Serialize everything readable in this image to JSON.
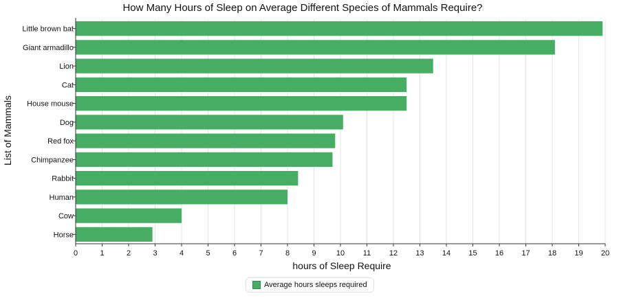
{
  "chart_data": {
    "type": "bar",
    "orientation": "horizontal",
    "title": "How Many Hours of Sleep on Average Different Species of Mammals Require?",
    "xlabel": "hours of Sleep Require",
    "ylabel": "List of Mammals",
    "xlim": [
      0,
      20
    ],
    "x_ticks": [
      0,
      1,
      2,
      3,
      4,
      5,
      6,
      7,
      8,
      9,
      10,
      11,
      12,
      13,
      14,
      15,
      16,
      17,
      18,
      19,
      20
    ],
    "grid": true,
    "legend_position": "bottom-center",
    "categories": [
      "Little brown bat",
      "Giant armadillo",
      "Lion",
      "Cat",
      "House mouse",
      "Dog",
      "Red fox",
      "Chimpanzee",
      "Rabbit",
      "Human",
      "Cow",
      "Horse"
    ],
    "series": [
      {
        "name": "Average hours sleeps required",
        "color": "#46ae63",
        "values": [
          19.9,
          18.1,
          13.5,
          12.5,
          12.5,
          10.1,
          9.8,
          9.7,
          8.4,
          8.0,
          4.0,
          2.9
        ]
      }
    ]
  }
}
